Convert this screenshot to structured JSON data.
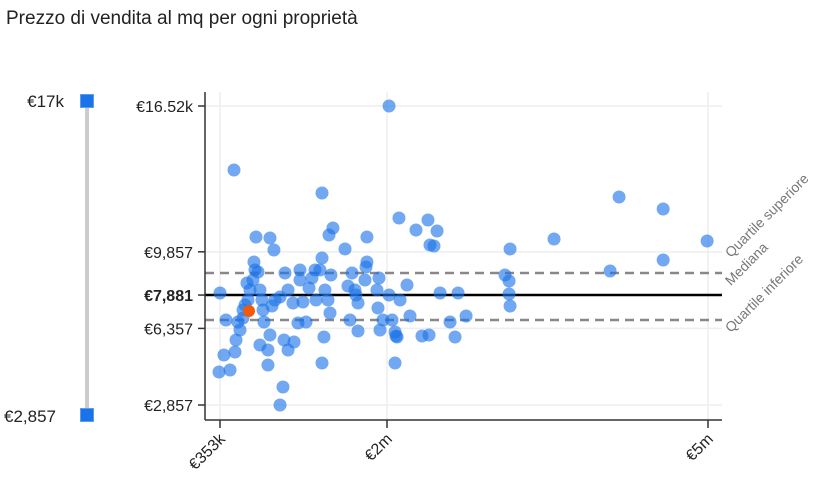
{
  "title": "Prezzo di vendita al mq per ogni proprietà",
  "slider": {
    "max_label": "€17k",
    "min_label": "€2,857",
    "color": "#1a73e8"
  },
  "chart_data": {
    "type": "scatter",
    "title": "Prezzo di vendita al mq per ogni proprietà",
    "xlabel": "",
    "ylabel": "",
    "x_unit": "thousand €",
    "x_ticks": [
      {
        "value": 353,
        "label": "€353k"
      },
      {
        "value": 2000,
        "label": "€2m"
      },
      {
        "value": 5000,
        "label": "€5m"
      }
    ],
    "y_ticks": [
      {
        "value": 16520,
        "label": "€16.52k"
      },
      {
        "value": 9857,
        "label": "€9,857"
      },
      {
        "value": 7881,
        "label": "€7,881"
      },
      {
        "value": 6357,
        "label": "€6,357"
      },
      {
        "value": 2857,
        "label": "€2,857"
      }
    ],
    "ylim": [
      2857,
      16520
    ],
    "reference_lines": [
      {
        "name": "Quartile superiore",
        "value": 8888,
        "style": "dashed"
      },
      {
        "name": "Mediana",
        "value": 7881,
        "style": "solid"
      },
      {
        "name": "Quartile inferiore",
        "value": 6740,
        "style": "dashed"
      }
    ],
    "point_color": "#1a73e8",
    "highlight_color": "#f05a0a",
    "highlight": [
      639,
      7151
    ],
    "points": [
      [
        491,
        13595
      ],
      [
        353,
        7974
      ],
      [
        412,
        6740
      ],
      [
        343,
        4364
      ],
      [
        392,
        5141
      ],
      [
        452,
        4455
      ],
      [
        501,
        5278
      ],
      [
        511,
        5826
      ],
      [
        550,
        6283
      ],
      [
        530,
        6649
      ],
      [
        580,
        6832
      ],
      [
        600,
        7426
      ],
      [
        629,
        7654
      ],
      [
        649,
        8111
      ],
      [
        619,
        8431
      ],
      [
        678,
        8568
      ],
      [
        698,
        9025
      ],
      [
        688,
        9391
      ],
      [
        728,
        8934
      ],
      [
        747,
        8111
      ],
      [
        767,
        7654
      ],
      [
        708,
        10533
      ],
      [
        846,
        10488
      ],
      [
        885,
        9939
      ],
      [
        787,
        6649
      ],
      [
        747,
        5598
      ],
      [
        826,
        5369
      ],
      [
        846,
        6055
      ],
      [
        866,
        7380
      ],
      [
        895,
        7654
      ],
      [
        945,
        7791
      ],
      [
        994,
        8888
      ],
      [
        1024,
        8111
      ],
      [
        1073,
        7517
      ],
      [
        984,
        5826
      ],
      [
        1024,
        5369
      ],
      [
        1083,
        5735
      ],
      [
        1122,
        6603
      ],
      [
        1142,
        8568
      ],
      [
        1142,
        9025
      ],
      [
        1171,
        7563
      ],
      [
        1201,
        6649
      ],
      [
        1231,
        8203
      ],
      [
        1260,
        8660
      ],
      [
        1290,
        9025
      ],
      [
        1300,
        7654
      ],
      [
        1339,
        9025
      ],
      [
        1359,
        9574
      ],
      [
        1359,
        12544
      ],
      [
        1388,
        8111
      ],
      [
        1418,
        7654
      ],
      [
        1438,
        7060
      ],
      [
        1467,
        10945
      ],
      [
        1428,
        10625
      ],
      [
        1447,
        8797
      ],
      [
        1378,
        5963
      ],
      [
        1359,
        4775
      ],
      [
        974,
        3678
      ],
      [
        945,
        2856
      ],
      [
        826,
        4684
      ],
      [
        1586,
        9985
      ],
      [
        1615,
        8294
      ],
      [
        1655,
        8888
      ],
      [
        1684,
        8111
      ],
      [
        1694,
        7883
      ],
      [
        1714,
        7517
      ],
      [
        1635,
        6740
      ],
      [
        1714,
        6237
      ],
      [
        1783,
        8568
      ],
      [
        1802,
        9391
      ],
      [
        1802,
        10533
      ],
      [
        1793,
        9162
      ],
      [
        1901,
        8111
      ],
      [
        1921,
        8660
      ],
      [
        1911,
        7289
      ],
      [
        1960,
        6740
      ],
      [
        1931,
        6283
      ],
      [
        2019,
        16520
      ],
      [
        2019,
        7883
      ],
      [
        2047,
        6740
      ],
      [
        2075,
        6192
      ],
      [
        2084,
        6009
      ],
      [
        2094,
        5963
      ],
      [
        2075,
        4775
      ],
      [
        2112,
        11402
      ],
      [
        2122,
        7654
      ],
      [
        2187,
        8340
      ],
      [
        2215,
        6923
      ],
      [
        2271,
        10853
      ],
      [
        2383,
        11310
      ],
      [
        2402,
        10168
      ],
      [
        2468,
        10807
      ],
      [
        2439,
        10122
      ],
      [
        2496,
        7974
      ],
      [
        2327,
        6009
      ],
      [
        2393,
        6055
      ],
      [
        2589,
        6649
      ],
      [
        2636,
        5963
      ],
      [
        2664,
        7974
      ],
      [
        2739,
        6923
      ],
      [
        3103,
        8797
      ],
      [
        3141,
        8522
      ],
      [
        3141,
        7928
      ],
      [
        3150,
        7380
      ],
      [
        3150,
        9985
      ],
      [
        3561,
        10442
      ],
      [
        4085,
        8979
      ],
      [
        4169,
        12361
      ],
      [
        4581,
        11813
      ],
      [
        4581,
        9482
      ],
      [
        4992,
        10350
      ],
      [
        777,
        7197
      ],
      [
        580,
        7197
      ]
    ]
  }
}
